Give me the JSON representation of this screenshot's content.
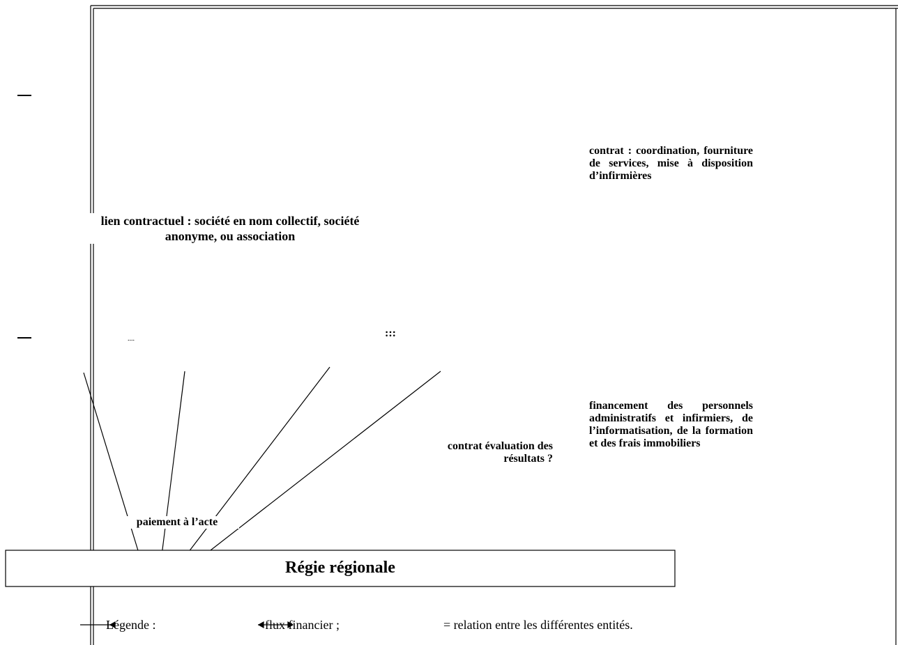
{
  "diagram": {
    "box": {
      "label": "Régie régionale"
    },
    "notes": {
      "coordination": "contrat : coordination, fourniture de services, mise à disposition d’infirmières",
      "contractual_link": "lien contractuel : société en nom collectif, société anonyme, ou association",
      "dots_left": "....",
      "dots_right": ":::",
      "fee_for_service": "paiement à l’acte",
      "evaluation": "contrat évaluation des résultats ?",
      "funding": "financement des personnels administratifs et infirmiers, de l’informatisation, de la formation et des frais immobiliers"
    },
    "legend": {
      "title": "Légende :",
      "financial_flow": "flux financier ;",
      "relation": "= relation entre les différentes entités."
    }
  }
}
